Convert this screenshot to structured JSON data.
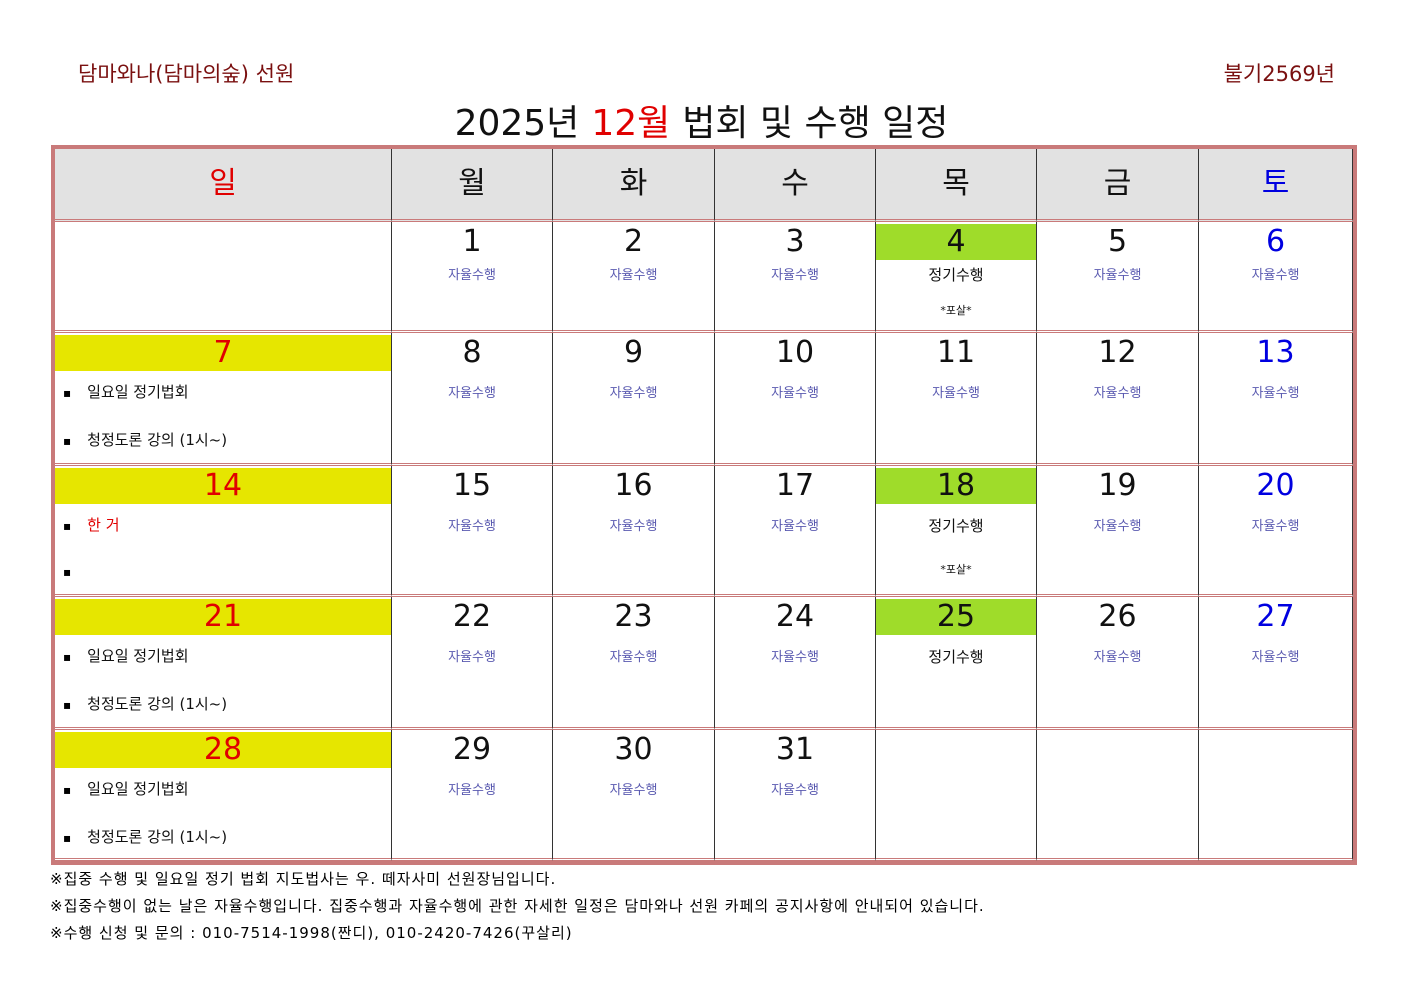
{
  "header": {
    "left": "담마와나(담마의숲) 선원",
    "right": "불기2569년"
  },
  "title": {
    "year": "2025년",
    "month": "12월",
    "rest": "법회 및 수행 일정",
    "month_color": "#e00000"
  },
  "table": {
    "weekdays": [
      "일",
      "월",
      "화",
      "수",
      "목",
      "금",
      "토"
    ],
    "sunday_color": "#e00000",
    "saturday_color": "#0000e0",
    "sunday_band": "#e6e600",
    "note_color": "#5a5ab0",
    "weeks": [
      [
        null,
        {
          "date": "1",
          "note": "자율수행"
        },
        {
          "date": "2",
          "note": "자율수행"
        },
        {
          "date": "3",
          "note": "자율수행"
        },
        {
          "date": "4",
          "note": "정기수행",
          "sub": "*포살*",
          "highlight": "#9fdc2a"
        },
        {
          "date": "5",
          "note": "자율수행"
        },
        {
          "date": "6",
          "note": "자율수행"
        }
      ],
      [
        {
          "date": "7",
          "items": [
            "일요일 정기법회",
            "청정도론 강의 (1시~)"
          ]
        },
        {
          "date": "8",
          "note": "자율수행"
        },
        {
          "date": "9",
          "note": "자율수행"
        },
        {
          "date": "10",
          "note": "자율수행"
        },
        {
          "date": "11",
          "note": "자율수행"
        },
        {
          "date": "12",
          "note": "자율수행"
        },
        {
          "date": "13",
          "note": "자율수행"
        }
      ],
      [
        {
          "date": "14",
          "items": [
            "한 거"
          ],
          "items_color": "#e00000",
          "extra_bullet": true
        },
        {
          "date": "15",
          "note": "자율수행"
        },
        {
          "date": "16",
          "note": "자율수행"
        },
        {
          "date": "17",
          "note": "자율수행"
        },
        {
          "date": "18",
          "note": "정기수행",
          "sub": "*포살*",
          "highlight": "#9fdc2a"
        },
        {
          "date": "19",
          "note": "자율수행"
        },
        {
          "date": "20",
          "note": "자율수행"
        }
      ],
      [
        {
          "date": "21",
          "items": [
            "일요일 정기법회",
            "청정도론 강의 (1시~)"
          ]
        },
        {
          "date": "22",
          "note": "자율수행"
        },
        {
          "date": "23",
          "note": "자율수행"
        },
        {
          "date": "24",
          "note": "자율수행"
        },
        {
          "date": "25",
          "note": "정기수행",
          "highlight": "#9fdc2a"
        },
        {
          "date": "26",
          "note": "자율수행"
        },
        {
          "date": "27",
          "note": "자율수행"
        }
      ],
      [
        {
          "date": "28",
          "items": [
            "일요일 정기법회",
            "청정도론 강의 (1시~)"
          ]
        },
        {
          "date": "29",
          "note": "자율수행"
        },
        {
          "date": "30",
          "note": "자율수행"
        },
        {
          "date": "31",
          "note": "자율수행"
        },
        null,
        null,
        null
      ]
    ]
  },
  "footer": [
    "※집중 수행 및 일요일 정기 법회 지도법사는 우. 떼자사미 선원장님입니다.",
    "※집중수행이 없는 날은 자율수행입니다. 집중수행과 자율수행에 관한 자세한 일정은 담마와나 선원 카페의 공지사항에 안내되어 있습니다.",
    "※수행 신청 및 문의 : 010-7514-1998(짠디), 010-2420-7426(꾸살리)"
  ]
}
